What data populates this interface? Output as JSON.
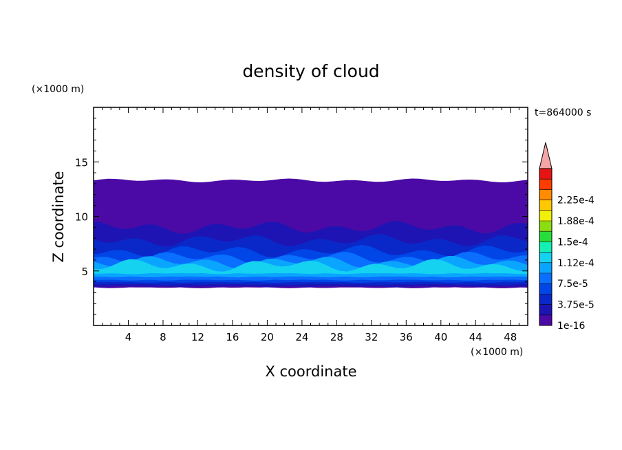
{
  "chart_data": {
    "type": "heatmap",
    "title": "density of cloud",
    "xlabel": "X coordinate",
    "ylabel": "Z coordinate",
    "x_unit": "(×1000 m)",
    "y_unit": "(×1000 m)",
    "time_label": "t=864000 s",
    "xlim": [
      0,
      50
    ],
    "ylim": [
      0,
      20
    ],
    "x_ticks": [
      4,
      8,
      12,
      16,
      20,
      24,
      28,
      32,
      36,
      40,
      44,
      48
    ],
    "y_ticks": [
      5,
      10,
      15
    ],
    "colorbar": {
      "labels": [
        "2.25e-4",
        "1.88e-4",
        "1.5e-4",
        "1.12e-4",
        "7.5e-5",
        "3.75e-5",
        "1e-16"
      ],
      "levels": [
        1e-16,
        1.875e-05,
        3.75e-05,
        5.625e-05,
        7.5e-05,
        9.375e-05,
        0.0001125,
        0.00013125,
        0.00015,
        0.00016875,
        0.0001875,
        0.00020625,
        0.000225,
        0.00024375
      ],
      "colors": [
        "#4b0aa5",
        "#1e14b4",
        "#0a28c8",
        "#0046e6",
        "#0a6eff",
        "#0aa5ff",
        "#14d2f0",
        "#14f0b4",
        "#28dc3c",
        "#8cdc14",
        "#f0f00a",
        "#ffc800",
        "#ff8c00",
        "#ff3c00",
        "#e61414"
      ],
      "overflow_color": "#f4a6a6"
    },
    "layers": [
      {
        "name_level": "1e-16",
        "z_bottom": 3.5,
        "z_top": 13.3
      },
      {
        "name_level": "1.875e-5",
        "z_bottom": 3.6,
        "z_top": 9.0
      },
      {
        "name_level": "3.75e-5",
        "z_bottom": 3.8,
        "z_top": 7.8
      },
      {
        "name_level": "5.625e-5",
        "z_bottom": 4.0,
        "z_top": 6.8
      },
      {
        "name_level": "7.5e-5",
        "z_bottom": 4.2,
        "z_top": 6.2
      },
      {
        "name_level": "9.375e-5",
        "z_bottom": 4.5,
        "z_top": 5.8
      },
      {
        "name_level": "1.125e-4",
        "z_bottom": 4.8,
        "z_top": 5.5
      }
    ]
  }
}
